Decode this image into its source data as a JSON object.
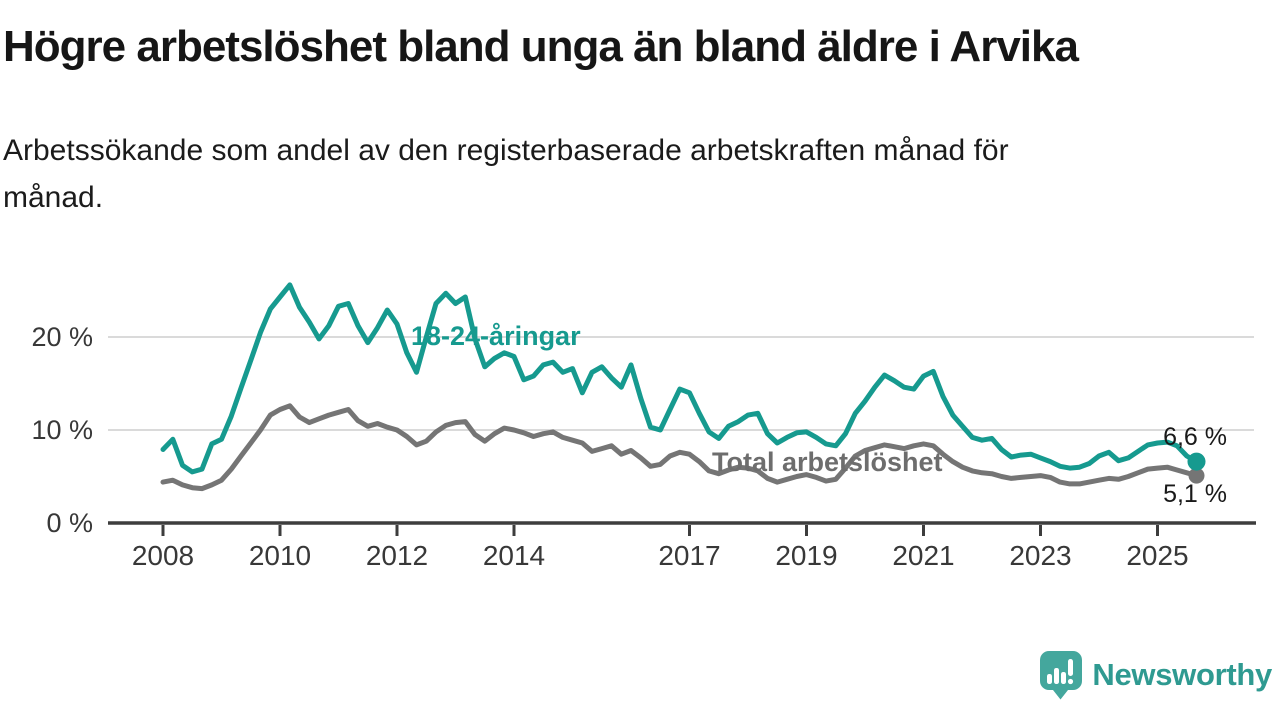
{
  "header": {
    "title": "Högre arbetslöshet bland unga än bland äldre i Arvika",
    "subtitle": "Arbetssökande som andel av den registerbaserade arbetskraften månad för månad."
  },
  "chart_data": {
    "type": "line",
    "unit": "%",
    "x_start_year": 2008,
    "points_per_year": 6,
    "x_axis_ticks": [
      2008,
      2010,
      2012,
      2014,
      2017,
      2019,
      2021,
      2023,
      2025
    ],
    "y_axis_ticks": [
      {
        "value": 0,
        "label": "0 %"
      },
      {
        "value": 10,
        "label": "10 %"
      },
      {
        "value": 20,
        "label": "20 %"
      }
    ],
    "ylim": [
      0,
      27
    ],
    "grid": "horizontal",
    "series": [
      {
        "name": "Total arbetslöshet",
        "color": "#757575",
        "end_label": "5,1 %",
        "end_value": 5.1,
        "values": [
          4.4,
          4.6,
          4.1,
          3.8,
          3.7,
          4.1,
          4.6,
          5.8,
          7.2,
          8.6,
          10.0,
          11.6,
          12.2,
          12.6,
          11.4,
          10.8,
          11.2,
          11.6,
          11.9,
          12.2,
          11.0,
          10.4,
          10.7,
          10.3,
          10.0,
          9.3,
          8.4,
          8.8,
          9.8,
          10.5,
          10.8,
          10.9,
          9.5,
          8.8,
          9.6,
          10.2,
          10.0,
          9.7,
          9.3,
          9.6,
          9.8,
          9.2,
          8.9,
          8.6,
          7.7,
          8.0,
          8.3,
          7.4,
          7.8,
          7.0,
          6.1,
          6.3,
          7.2,
          7.6,
          7.4,
          6.6,
          5.6,
          5.3,
          5.7,
          6.0,
          5.9,
          5.6,
          4.8,
          4.4,
          4.7,
          5.0,
          5.2,
          4.9,
          4.5,
          4.7,
          5.9,
          7.2,
          7.8,
          8.1,
          8.4,
          8.2,
          8.0,
          8.3,
          8.5,
          8.3,
          7.4,
          6.6,
          6.0,
          5.6,
          5.4,
          5.3,
          5.0,
          4.8,
          4.9,
          5.0,
          5.1,
          4.9,
          4.4,
          4.2,
          4.2,
          4.4,
          4.6,
          4.8,
          4.7,
          5.0,
          5.4,
          5.8,
          5.9,
          6.0,
          5.7,
          5.4,
          5.1
        ]
      },
      {
        "name": "18-24-åringar",
        "color": "#169a8f",
        "end_label": "6,6 %",
        "end_value": 6.6,
        "values": [
          7.9,
          9.0,
          6.2,
          5.5,
          5.8,
          8.5,
          9.0,
          11.5,
          14.5,
          17.5,
          20.5,
          23.0,
          24.3,
          25.6,
          23.2,
          21.6,
          19.8,
          21.2,
          23.3,
          23.6,
          21.2,
          19.4,
          21.0,
          22.9,
          21.4,
          18.3,
          16.2,
          20.0,
          23.6,
          24.7,
          23.6,
          24.3,
          19.8,
          16.8,
          17.7,
          18.3,
          17.9,
          15.4,
          15.8,
          17.0,
          17.3,
          16.2,
          16.6,
          14.0,
          16.2,
          16.8,
          15.6,
          14.6,
          17.0,
          13.4,
          10.3,
          10.0,
          12.2,
          14.4,
          14.0,
          11.8,
          9.8,
          9.1,
          10.4,
          10.9,
          11.6,
          11.8,
          9.6,
          8.6,
          9.2,
          9.7,
          9.8,
          9.2,
          8.5,
          8.3,
          9.6,
          11.8,
          13.1,
          14.6,
          15.9,
          15.3,
          14.6,
          14.4,
          15.8,
          16.3,
          13.6,
          11.6,
          10.4,
          9.2,
          8.9,
          9.1,
          7.9,
          7.1,
          7.3,
          7.4,
          7.0,
          6.6,
          6.1,
          5.9,
          6.0,
          6.4,
          7.2,
          7.6,
          6.7,
          7.0,
          7.7,
          8.4,
          8.6,
          8.7,
          8.3,
          7.2,
          6.6
        ]
      }
    ]
  },
  "footer": {
    "brand": "Newsworthy"
  }
}
